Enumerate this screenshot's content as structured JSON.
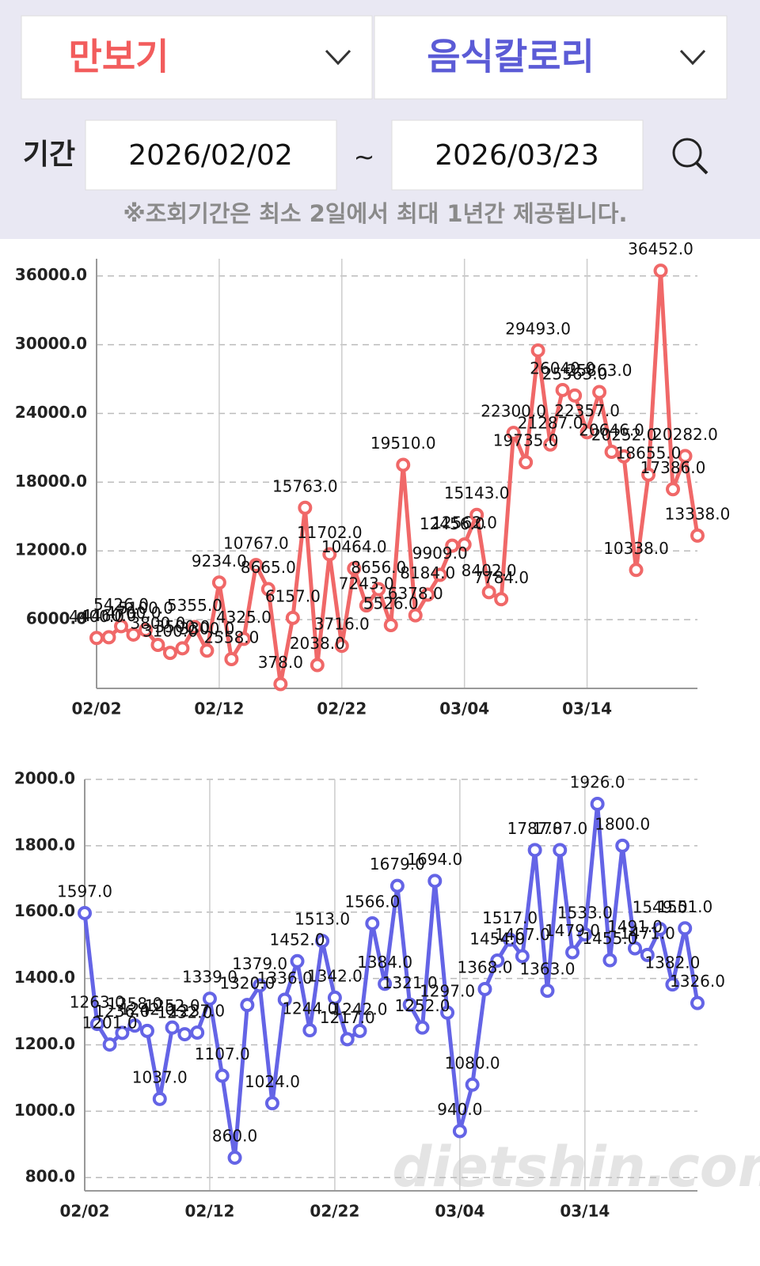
{
  "controls": {
    "left_dropdown": "만보기",
    "right_dropdown": "음식칼로리",
    "period_label": "기간",
    "start_date": "2026/02/02",
    "separator": "~",
    "end_date": "2026/03/23",
    "note": "※조회기간은 최소 2일에서 최대 1년간 제공됩니다."
  },
  "watermark": "dietshin.com",
  "chart_data": [
    {
      "type": "line",
      "categories": [
        "02/02",
        null,
        null,
        null,
        null,
        null,
        null,
        null,
        null,
        null,
        "02/12",
        null,
        null,
        null,
        null,
        null,
        null,
        null,
        null,
        null,
        "02/22",
        null,
        null,
        null,
        null,
        null,
        null,
        null,
        null,
        null,
        "03/04",
        null,
        null,
        null,
        null,
        null,
        null,
        null,
        null,
        null,
        "03/14",
        null,
        null,
        null,
        null,
        null,
        null,
        null,
        null,
        null
      ],
      "series": [
        {
          "name": "만보기",
          "color": "#f06868",
          "values": [
            4400,
            4460,
            5426,
            4700,
            5100,
            3800,
            3100,
            3500,
            5355,
            3300,
            9234,
            2558,
            4325,
            10767,
            8665,
            378,
            6157,
            15763,
            2038,
            11702,
            3716,
            10464,
            7243,
            8656,
            5526,
            19510,
            6378,
            8184,
            9909,
            12456,
            12562,
            15143,
            8402,
            7784,
            22300,
            19735,
            29493,
            21287,
            26040,
            25563,
            22357,
            25863,
            20646,
            20252,
            10338,
            18655,
            36452,
            17386,
            20282,
            13338
          ],
          "value_labels": [
            "4400.0",
            "4460.0",
            "5426.0",
            "4700.0",
            "5100.0",
            "3800.0",
            "3100.0",
            "3500.0",
            "5355.0",
            "3300.0",
            "9234.0",
            "2558.0",
            "4325.0",
            "10767.0",
            "8665.0",
            "378.0",
            "6157.0",
            "15763.0",
            "2038.0",
            "11702.0",
            "3716.0",
            "10464.0",
            "7243.0",
            "8656.0",
            "5526.0",
            "19510.0",
            "6378.0",
            "8184.0",
            "9909.0",
            "12456.0",
            "12562.0",
            "15143.0",
            "8402.0",
            "7784.0",
            "22300.0",
            "19735.0",
            "29493.0",
            "21287.0",
            "26040.0",
            "25563.0",
            "22357.0",
            "25863.0",
            "20646.0",
            "20252.0",
            "10338.0",
            "18655.0",
            "36452.0",
            "17386.0",
            "20282.0",
            "13338.0"
          ]
        }
      ],
      "ylim": [
        0,
        37500
      ],
      "yticks": [
        {
          "value": 6000,
          "label": "6000.0"
        },
        {
          "value": 12000,
          "label": "12000.0"
        },
        {
          "value": 18000,
          "label": "18000.0"
        },
        {
          "value": 24000,
          "label": "24000.0"
        },
        {
          "value": 30000,
          "label": "30000.0"
        },
        {
          "value": 36000,
          "label": "36000.0"
        }
      ],
      "grid": true
    },
    {
      "type": "line",
      "categories": [
        "02/02",
        null,
        null,
        null,
        null,
        null,
        null,
        null,
        null,
        null,
        "02/12",
        null,
        null,
        null,
        null,
        null,
        null,
        null,
        null,
        null,
        "02/22",
        null,
        null,
        null,
        null,
        null,
        null,
        null,
        null,
        null,
        "03/04",
        null,
        null,
        null,
        null,
        null,
        null,
        null,
        null,
        null,
        "03/14",
        null,
        null,
        null,
        null,
        null,
        null,
        null,
        null,
        null
      ],
      "series": [
        {
          "name": "음식칼로리",
          "color": "#6464e6",
          "values": [
            1597,
            1263,
            1201,
            1236,
            1258,
            1242,
            1037,
            1252,
            1232,
            1237,
            1339,
            1107,
            860,
            1320,
            1379,
            1024,
            1336,
            1452,
            1244,
            1513,
            1342,
            1217,
            1242,
            1566,
            1384,
            1679,
            1321,
            1252,
            1694,
            1297,
            940,
            1080,
            1368,
            1454,
            1517,
            1467,
            1787,
            1363,
            1787,
            1479,
            1533,
            1926,
            1455,
            1800,
            1491,
            1471,
            1549,
            1382,
            1551,
            1326
          ],
          "value_labels": [
            "1597.0",
            "1263.0",
            "1201.0",
            "1236.0",
            "1258.0",
            "1242.0",
            "1037.0",
            "1252.0",
            "1232.0",
            "1237.0",
            "1339.0",
            "1107.0",
            "860.0",
            "1320.0",
            "1379.0",
            "1024.0",
            "1336.0",
            "1452.0",
            "1244.0",
            "1513.0",
            "1342.0",
            "1217.0",
            "1242.0",
            "1566.0",
            "1384.0",
            "1679.0",
            "1321.0",
            "1252.0",
            "1694.0",
            "1297.0",
            "940.0",
            "1080.0",
            "1368.0",
            "1454.0",
            "1517.0",
            "1467.0",
            "1787.0",
            "1363.0",
            "1787.0",
            "1479.0",
            "1533.0",
            "1926.0",
            "1455.0",
            "1800.0",
            "1491.0",
            "1471.0",
            "1549.0",
            "1382.0",
            "1551.0",
            "1326.0"
          ]
        }
      ],
      "ylim": [
        760,
        2000
      ],
      "yticks": [
        {
          "value": 800,
          "label": "800.0"
        },
        {
          "value": 1000,
          "label": "1000.0"
        },
        {
          "value": 1200,
          "label": "1200.0"
        },
        {
          "value": 1400,
          "label": "1400.0"
        },
        {
          "value": 1600,
          "label": "1600.0"
        },
        {
          "value": 1800,
          "label": "1800.0"
        },
        {
          "value": 2000,
          "label": "2000.0"
        }
      ],
      "grid": true
    }
  ]
}
